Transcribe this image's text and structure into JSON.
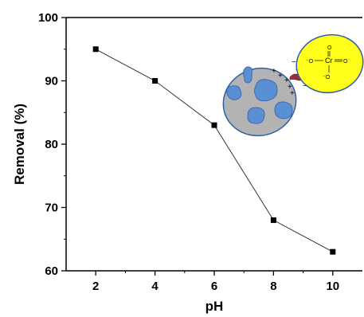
{
  "chart_data": {
    "type": "line",
    "title": "",
    "xlabel": "pH",
    "ylabel": "Removal (%)",
    "xlim": [
      1,
      11
    ],
    "ylim": [
      60,
      100
    ],
    "x_ticks": [
      "2",
      "4",
      "6",
      "8",
      "10"
    ],
    "y_ticks": [
      "60",
      "70",
      "80",
      "90",
      "100"
    ],
    "grid": false,
    "legend": "none",
    "series": [
      {
        "x": [
          2,
          4,
          6,
          8,
          10
        ],
        "y": [
          95,
          90,
          83,
          68,
          63
        ]
      }
    ],
    "marker": "square",
    "line_color": "#333333",
    "marker_color": "#000000"
  },
  "inset": {
    "adsorbent_fill": "#b3b3b3",
    "pore_color": "#5b8fd4",
    "anion_fill": "#ffff1a",
    "charge_plus": "+",
    "charge_minus": "−",
    "central_atom": "Cr",
    "oxygen": "O",
    "oxygen_minus": "⁻O"
  }
}
